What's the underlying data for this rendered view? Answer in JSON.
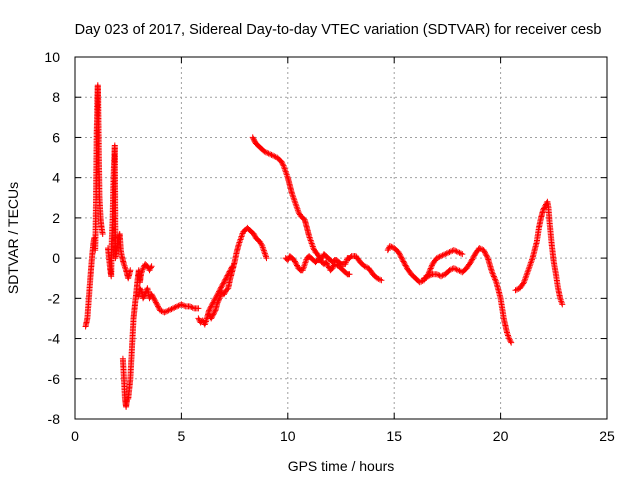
{
  "chart_data": {
    "type": "scatter",
    "title": "Day 023 of 2017, Sidereal Day-to-day VTEC variation (SDTVAR) for receiver cesb",
    "xlabel": "GPS time / hours",
    "ylabel": "SDTVAR / TECUs",
    "xlim": [
      0,
      25
    ],
    "ylim": [
      -8,
      10
    ],
    "xticks": [
      0,
      5,
      10,
      15,
      20,
      25
    ],
    "yticks": [
      -8,
      -6,
      -4,
      -2,
      0,
      2,
      4,
      6,
      8,
      10
    ],
    "xtick_labels": [
      "0",
      "5",
      "10",
      "15",
      "20",
      "25"
    ],
    "ytick_labels": [
      "-8",
      "-6",
      "-4",
      "-2",
      "0",
      "2",
      "4",
      "6",
      "8",
      "10"
    ],
    "grid": true,
    "marker": "+",
    "series": [
      {
        "name": "SDTVAR",
        "color": "#ff0000",
        "segments": [
          [
            [
              0.5,
              -3.4
            ],
            [
              0.58,
              -3.0
            ],
            [
              0.65,
              -2.0
            ],
            [
              0.72,
              -1.0
            ],
            [
              0.78,
              -0.2
            ],
            [
              0.85,
              0.6
            ],
            [
              0.9,
              1.0
            ]
          ],
          [
            [
              0.95,
              0.4
            ],
            [
              0.97,
              1.5
            ],
            [
              0.99,
              3.0
            ],
            [
              1.01,
              5.2
            ],
            [
              1.02,
              6.2
            ],
            [
              1.04,
              7.0
            ],
            [
              1.05,
              8.0
            ],
            [
              1.07,
              8.6
            ],
            [
              1.09,
              7.8
            ],
            [
              1.12,
              5.0
            ],
            [
              1.15,
              3.0
            ],
            [
              1.2,
              2.0
            ],
            [
              1.25,
              1.5
            ],
            [
              1.3,
              1.2
            ]
          ],
          [
            [
              1.55,
              0.5
            ],
            [
              1.6,
              0.0
            ],
            [
              1.65,
              -0.5
            ],
            [
              1.7,
              -0.9
            ],
            [
              1.73,
              0.9
            ],
            [
              1.77,
              2.0
            ],
            [
              1.8,
              3.5
            ],
            [
              1.83,
              4.5
            ],
            [
              1.85,
              5.0
            ],
            [
              1.87,
              5.6
            ],
            [
              1.9,
              0.0
            ],
            [
              1.95,
              0.3
            ],
            [
              2.0,
              0.8
            ],
            [
              2.1,
              1.2
            ],
            [
              2.15,
              0.4
            ],
            [
              2.2,
              0.1
            ],
            [
              2.3,
              -0.3
            ],
            [
              2.4,
              -0.6
            ],
            [
              2.5,
              -1.0
            ],
            [
              2.6,
              -0.6
            ]
          ],
          [
            [
              2.25,
              -5.0
            ],
            [
              2.3,
              -6.0
            ],
            [
              2.35,
              -7.0
            ],
            [
              2.4,
              -7.4
            ],
            [
              2.45,
              -7.0
            ],
            [
              2.5,
              -7.0
            ],
            [
              2.55,
              -6.5
            ],
            [
              2.6,
              -6.0
            ],
            [
              2.65,
              -5.0
            ],
            [
              2.7,
              -4.0
            ],
            [
              2.75,
              -3.0
            ],
            [
              2.8,
              -2.5
            ],
            [
              2.85,
              -2.0
            ],
            [
              2.9,
              -1.5
            ],
            [
              2.95,
              -1.0
            ],
            [
              3.0,
              -0.6
            ],
            [
              3.05,
              -1.2
            ],
            [
              3.1,
              -0.8
            ],
            [
              3.2,
              -0.5
            ],
            [
              3.3,
              -0.3
            ],
            [
              3.4,
              -0.4
            ],
            [
              3.5,
              -0.6
            ],
            [
              3.6,
              -0.4
            ]
          ],
          [
            [
              3.0,
              -1.9
            ],
            [
              3.05,
              -1.5
            ],
            [
              3.15,
              -1.7
            ],
            [
              3.2,
              -2.0
            ],
            [
              3.3,
              -1.8
            ],
            [
              3.4,
              -1.5
            ],
            [
              3.5,
              -2.0
            ],
            [
              3.6,
              -1.8
            ],
            [
              3.7,
              -2.0
            ],
            [
              3.8,
              -2.2
            ],
            [
              3.9,
              -2.4
            ],
            [
              4.0,
              -2.6
            ],
            [
              4.2,
              -2.7
            ],
            [
              4.4,
              -2.6
            ],
            [
              4.6,
              -2.5
            ],
            [
              4.8,
              -2.4
            ],
            [
              5.0,
              -2.3
            ],
            [
              5.2,
              -2.4
            ],
            [
              5.4,
              -2.4
            ],
            [
              5.6,
              -2.5
            ],
            [
              5.8,
              -2.5
            ]
          ],
          [
            [
              5.8,
              -3.0
            ],
            [
              5.9,
              -3.2
            ],
            [
              6.0,
              -3.1
            ],
            [
              6.1,
              -3.3
            ],
            [
              6.2,
              -3.0
            ],
            [
              6.3,
              -2.6
            ],
            [
              6.4,
              -2.4
            ],
            [
              6.5,
              -2.2
            ],
            [
              6.6,
              -2.0
            ],
            [
              6.8,
              -1.6
            ],
            [
              7.0,
              -1.2
            ],
            [
              7.2,
              -0.8
            ],
            [
              7.4,
              -0.4
            ]
          ],
          [
            [
              6.3,
              -2.8
            ],
            [
              6.4,
              -3.0
            ],
            [
              6.5,
              -2.8
            ],
            [
              6.6,
              -2.6
            ],
            [
              6.7,
              -2.2
            ],
            [
              6.8,
              -2.0
            ],
            [
              6.9,
              -1.7
            ],
            [
              7.0,
              -1.8
            ],
            [
              7.1,
              -1.6
            ],
            [
              7.2,
              -1.5
            ],
            [
              7.3,
              -1.0
            ],
            [
              7.4,
              -0.6
            ],
            [
              7.5,
              -0.2
            ],
            [
              7.6,
              0.3
            ],
            [
              7.7,
              0.7
            ],
            [
              7.8,
              1.0
            ],
            [
              7.9,
              1.3
            ],
            [
              8.0,
              1.4
            ],
            [
              8.1,
              1.5
            ],
            [
              8.2,
              1.4
            ],
            [
              8.3,
              1.3
            ],
            [
              8.4,
              1.2
            ],
            [
              8.5,
              1.0
            ],
            [
              8.6,
              0.9
            ],
            [
              8.7,
              0.8
            ],
            [
              8.8,
              0.6
            ],
            [
              8.9,
              0.3
            ],
            [
              9.0,
              0.0
            ]
          ],
          [
            [
              8.35,
              6.0
            ],
            [
              8.5,
              5.7
            ],
            [
              8.7,
              5.5
            ],
            [
              8.9,
              5.3
            ],
            [
              9.1,
              5.2
            ],
            [
              9.3,
              5.1
            ],
            [
              9.5,
              5.0
            ],
            [
              9.7,
              4.8
            ],
            [
              9.8,
              4.6
            ],
            [
              9.9,
              4.3
            ],
            [
              10.0,
              4.0
            ],
            [
              10.1,
              3.6
            ],
            [
              10.2,
              3.2
            ],
            [
              10.3,
              2.9
            ],
            [
              10.4,
              2.6
            ],
            [
              10.5,
              2.3
            ],
            [
              10.6,
              2.1
            ],
            [
              10.8,
              1.9
            ],
            [
              10.9,
              1.5
            ],
            [
              11.0,
              1.1
            ],
            [
              11.1,
              0.8
            ],
            [
              11.2,
              0.5
            ],
            [
              11.3,
              0.3
            ],
            [
              11.4,
              0.2
            ],
            [
              11.5,
              0.0
            ],
            [
              11.6,
              -0.2
            ],
            [
              11.7,
              -0.3
            ],
            [
              11.8,
              -0.2
            ],
            [
              11.9,
              -0.4
            ],
            [
              12.0,
              -0.6
            ],
            [
              12.1,
              -0.5
            ],
            [
              12.2,
              -0.3
            ],
            [
              12.4,
              -0.4
            ],
            [
              12.6,
              -0.6
            ],
            [
              12.8,
              -0.8
            ],
            [
              12.9,
              -0.8
            ]
          ],
          [
            [
              9.9,
              0.0
            ],
            [
              10.0,
              -0.1
            ],
            [
              10.1,
              0.1
            ],
            [
              10.2,
              0.0
            ],
            [
              10.3,
              -0.1
            ],
            [
              10.4,
              -0.3
            ],
            [
              10.5,
              -0.5
            ],
            [
              10.6,
              -0.6
            ],
            [
              10.7,
              -0.6
            ],
            [
              10.8,
              -0.3
            ],
            [
              10.9,
              0.0
            ],
            [
              11.0,
              0.1
            ],
            [
              11.1,
              0.0
            ],
            [
              11.2,
              -0.1
            ],
            [
              11.3,
              -0.2
            ],
            [
              11.4,
              -0.1
            ],
            [
              11.5,
              -0.1
            ],
            [
              11.6,
              0.0
            ],
            [
              11.7,
              0.2
            ],
            [
              11.8,
              0.1
            ],
            [
              11.9,
              0.0
            ],
            [
              12.0,
              -0.1
            ],
            [
              12.1,
              -0.2
            ],
            [
              12.2,
              -0.1
            ],
            [
              12.3,
              -0.1
            ],
            [
              12.4,
              -0.2
            ],
            [
              12.5,
              -0.3
            ],
            [
              12.6,
              -0.3
            ],
            [
              12.7,
              -0.3
            ],
            [
              12.8,
              0.0
            ],
            [
              12.9,
              0.0
            ],
            [
              13.0,
              0.1
            ],
            [
              13.2,
              0.1
            ],
            [
              13.4,
              -0.2
            ],
            [
              13.6,
              -0.4
            ],
            [
              13.8,
              -0.5
            ],
            [
              14.0,
              -0.8
            ],
            [
              14.2,
              -1.0
            ],
            [
              14.4,
              -1.1
            ]
          ],
          [
            [
              14.7,
              0.4
            ],
            [
              14.8,
              0.6
            ],
            [
              15.0,
              0.5
            ],
            [
              15.2,
              0.3
            ],
            [
              15.4,
              -0.1
            ],
            [
              15.6,
              -0.5
            ],
            [
              15.8,
              -0.8
            ],
            [
              16.0,
              -1.0
            ],
            [
              16.2,
              -1.2
            ],
            [
              16.4,
              -1.1
            ],
            [
              16.6,
              -0.8
            ],
            [
              16.8,
              -0.3
            ],
            [
              17.0,
              0.0
            ],
            [
              17.2,
              0.1
            ],
            [
              17.4,
              0.2
            ],
            [
              17.6,
              0.3
            ],
            [
              17.8,
              0.4
            ],
            [
              18.0,
              0.3
            ],
            [
              18.2,
              0.2
            ]
          ],
          [
            [
              16.4,
              -1.0
            ],
            [
              16.6,
              -0.9
            ],
            [
              16.8,
              -0.8
            ],
            [
              17.0,
              -0.8
            ],
            [
              17.2,
              -0.9
            ],
            [
              17.4,
              -0.8
            ],
            [
              17.6,
              -0.6
            ],
            [
              17.8,
              -0.5
            ],
            [
              18.0,
              -0.6
            ],
            [
              18.2,
              -0.7
            ],
            [
              18.4,
              -0.5
            ],
            [
              18.6,
              -0.2
            ],
            [
              18.8,
              0.2
            ],
            [
              19.0,
              0.5
            ],
            [
              19.2,
              0.4
            ],
            [
              19.4,
              0.0
            ],
            [
              19.6,
              -0.7
            ],
            [
              19.8,
              -1.2
            ],
            [
              20.0,
              -2.0
            ],
            [
              20.15,
              -3.0
            ],
            [
              20.3,
              -3.7
            ],
            [
              20.4,
              -4.0
            ],
            [
              20.5,
              -4.2
            ]
          ],
          [
            [
              20.7,
              -1.6
            ],
            [
              20.9,
              -1.5
            ],
            [
              21.1,
              -1.2
            ],
            [
              21.3,
              -0.6
            ],
            [
              21.5,
              0.0
            ],
            [
              21.7,
              0.8
            ],
            [
              21.8,
              1.5
            ],
            [
              21.9,
              2.0
            ],
            [
              22.0,
              2.4
            ],
            [
              22.1,
              2.6
            ],
            [
              22.2,
              2.8
            ],
            [
              22.25,
              2.5
            ],
            [
              22.3,
              1.8
            ],
            [
              22.4,
              0.7
            ],
            [
              22.5,
              -0.2
            ],
            [
              22.6,
              -0.8
            ],
            [
              22.7,
              -1.5
            ],
            [
              22.8,
              -2.0
            ],
            [
              22.9,
              -2.3
            ]
          ]
        ]
      }
    ]
  }
}
